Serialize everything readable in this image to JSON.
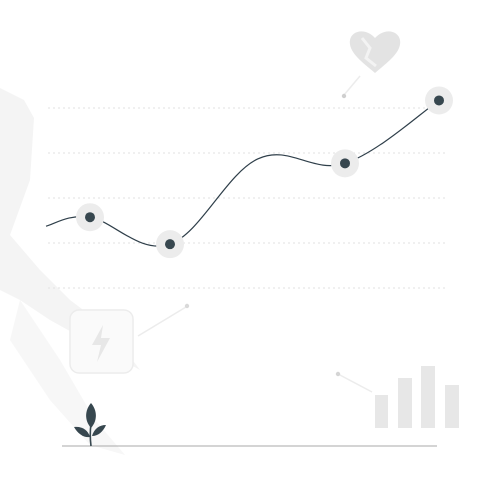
{
  "chart_data": {
    "type": "line",
    "title": "",
    "xlabel": "",
    "ylabel": "",
    "grid": true,
    "series": [
      {
        "values": [
          2.2,
          2.4,
          1.8,
          3.7,
          3.6,
          5.0
        ],
        "markers": [
          false,
          true,
          true,
          false,
          true,
          true
        ]
      }
    ]
  },
  "colors": {
    "line": "#2f3f4a",
    "marker": "#37474f",
    "marker_halo": "#ececec",
    "decor": "#e6e6e6",
    "decor_light": "#f1f1f1",
    "ground": "#a9a9a9",
    "plant": "#37474f"
  },
  "icons": {
    "heart": "heart-icon",
    "bolt": "lightning-bolt-icon",
    "bars": "mini-bar-chart-icon",
    "plant": "plant-icon"
  }
}
